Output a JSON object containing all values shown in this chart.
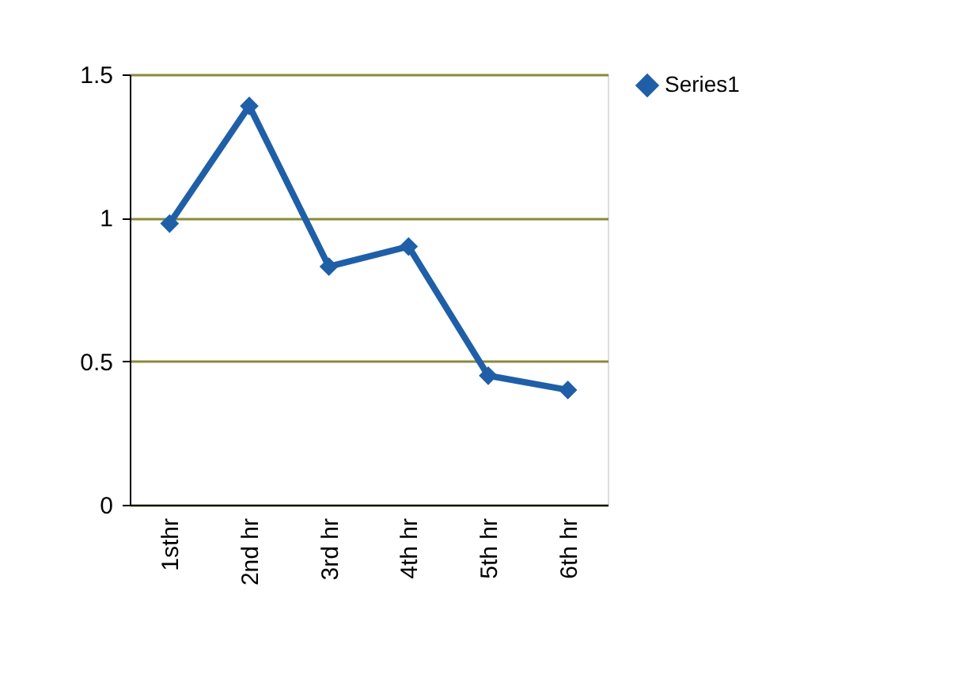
{
  "chart_data": {
    "type": "line",
    "categories": [
      "1sthr",
      "2nd hr",
      "3rd hr",
      "4th hr",
      "5th hr",
      "6th hr"
    ],
    "series": [
      {
        "name": "Series1",
        "color": "#1f5fa8",
        "values": [
          0.98,
          1.39,
          0.83,
          0.9,
          0.45,
          0.4
        ]
      }
    ],
    "ylim": [
      0,
      1.5
    ],
    "yticks": [
      0,
      0.5,
      1,
      1.5
    ],
    "grid": "y",
    "legend": "right",
    "marker": "diamond",
    "line_style": "solid"
  }
}
